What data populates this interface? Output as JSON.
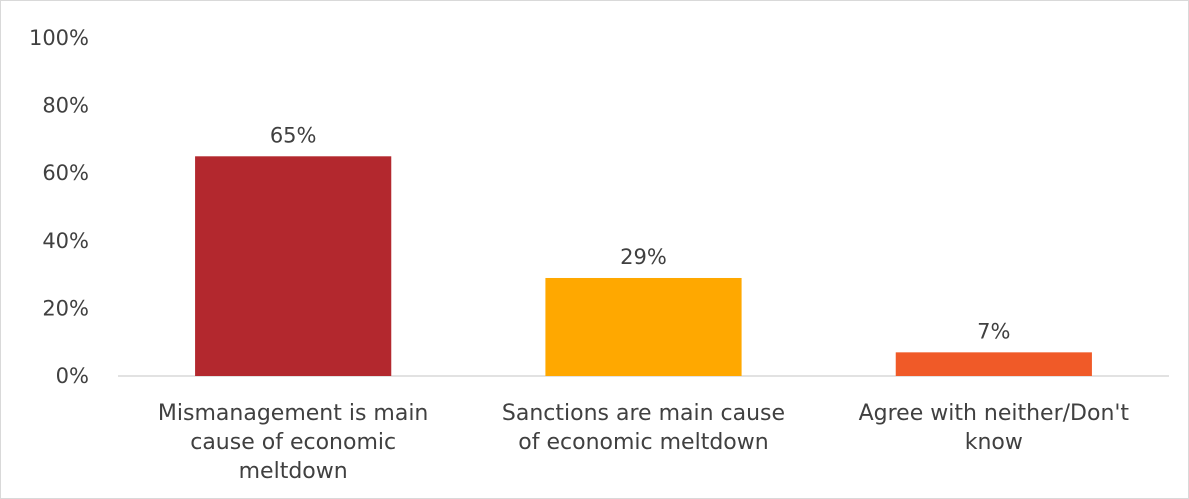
{
  "chart_data": {
    "type": "bar",
    "categories": [
      [
        "Mismanagement is main",
        "cause of economic",
        "meltdown"
      ],
      [
        "Sanctions are main cause",
        "of economic meltdown"
      ],
      [
        "Agree with neither/Don't",
        "know"
      ]
    ],
    "values": [
      65,
      29,
      7
    ],
    "data_labels": [
      "65%",
      "29%",
      "7%"
    ],
    "colors": [
      "#b3282e",
      "#ffa800",
      "#f05a28"
    ],
    "ylim": [
      0,
      100
    ],
    "yticks": [
      0,
      20,
      40,
      60,
      80,
      100
    ],
    "ytick_labels": [
      "0%",
      "20%",
      "40%",
      "60%",
      "80%",
      "100%"
    ],
    "title": "",
    "xlabel": "",
    "ylabel": "",
    "grid": false,
    "legend": "none"
  }
}
